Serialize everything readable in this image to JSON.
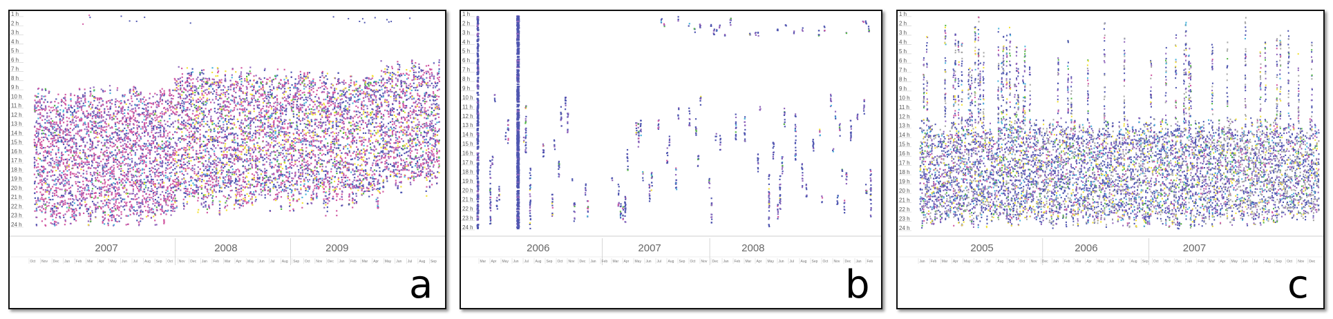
{
  "colors": {
    "blue": "#4f56b0",
    "pink": "#d25aa3",
    "purple": "#9167bc",
    "cyan": "#4bb5dc",
    "yellow": "#f2e23a",
    "green": "#56b948",
    "gray": "#a7a7a7",
    "axis": "#888888"
  },
  "hour_labels": [
    "1 h",
    "2 h",
    "3 h",
    "4 h",
    "5 h",
    "6 h",
    "7 h",
    "8 h",
    "9 h",
    "10 h",
    "11 h",
    "12 h",
    "13 h",
    "14 h",
    "15 h",
    "16 h",
    "17 h",
    "18 h",
    "19 h",
    "20 h",
    "21 h",
    "22 h",
    "23 h",
    "24 h"
  ],
  "month_labels": [
    "Jan",
    "Feb",
    "Mar",
    "Apr",
    "May",
    "Jun",
    "Jul",
    "Aug",
    "Sep",
    "Oct",
    "Nov",
    "Dec"
  ],
  "chart_data": [
    {
      "type": "scatter",
      "panel_label": "a",
      "x_years": [
        "2007",
        "2008",
        "2009"
      ],
      "first_month": "Oct",
      "y_axis": "hour of day (1 h – 24 h)",
      "ylim": [
        1,
        24
      ],
      "dominant_colors": [
        "pink",
        "blue",
        "purple",
        "cyan",
        "yellow",
        "green"
      ],
      "activity_bands": [
        {
          "period": "late 2006 – early 2008",
          "hour_start": 9,
          "hour_end": 24
        },
        {
          "period": "2008",
          "hour_start": 7,
          "hour_end": 22
        },
        {
          "period": "2009",
          "hour_start": 7.5,
          "hour_end": 22
        },
        {
          "period": "late 2009",
          "hour_start": 6,
          "hour_end": 20
        }
      ]
    },
    {
      "type": "scatter",
      "panel_label": "b",
      "x_years": [
        "2006",
        "2007",
        "2008"
      ],
      "first_month": "Mar",
      "y_axis": "hour of day (1 h – 24 h)",
      "ylim": [
        1,
        24
      ],
      "dominant_colors": [
        "blue",
        "purple"
      ],
      "activity_bands": [
        {
          "period": "2006 – 2008",
          "hour_start": 9,
          "hour_end": 24,
          "density": "sparse"
        }
      ]
    },
    {
      "type": "scatter",
      "panel_label": "c",
      "x_years": [
        "2005",
        "2006",
        "2007"
      ],
      "first_month": "Jan",
      "y_axis": "hour of day (1 h – 24 h)",
      "ylim": [
        1,
        24
      ],
      "dominant_colors": [
        "blue",
        "purple",
        "gray",
        "yellow",
        "cyan",
        "green"
      ],
      "activity_bands": [
        {
          "period": "2005 – 2007",
          "hour_start": 12,
          "hour_end": 24,
          "density": "dense"
        },
        {
          "period": "2005",
          "hour_start": 1,
          "hour_end": 12,
          "density": "streaks"
        }
      ]
    }
  ]
}
